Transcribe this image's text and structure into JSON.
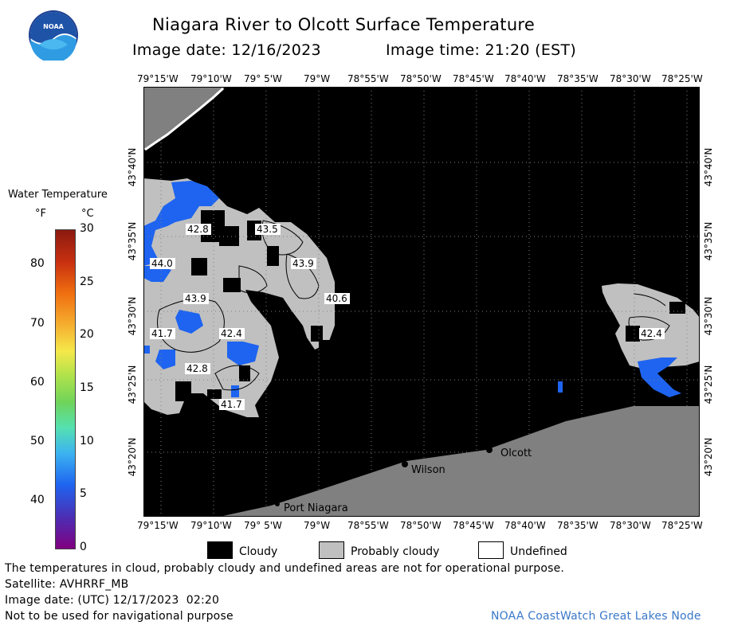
{
  "header": {
    "title": "Niagara River to Olcott Surface Temperature",
    "image_date_label": "Image date: 12/16/2023",
    "image_time_label": "Image time: 21:20 (EST)"
  },
  "logo": {
    "text": "NOAA"
  },
  "axes": {
    "lon_labels": [
      "79°15'W",
      "79°10'W",
      "79° 5'W",
      "79°W",
      "78°55'W",
      "78°50'W",
      "78°45'W",
      "78°40'W",
      "78°35'W",
      "78°30'W",
      "78°25'W"
    ],
    "lat_labels": [
      "43°40'N",
      "43°35'N",
      "43°30'N",
      "43°25'N",
      "43°20'N"
    ]
  },
  "color_scale": {
    "title": "Water Temperature",
    "unit_f": "°F",
    "unit_c": "°C",
    "f_ticks": [
      "80",
      "70",
      "60",
      "50",
      "40"
    ],
    "c_ticks": [
      "30",
      "25",
      "20",
      "15",
      "10",
      "5",
      "0"
    ],
    "f_range": [
      32,
      86
    ],
    "c_range": [
      0,
      30
    ]
  },
  "map": {
    "temperature_labels": [
      "42.8",
      "43.5",
      "43.9",
      "44.0",
      "43.9",
      "40.6",
      "41.7",
      "42.4",
      "42.8",
      "41.7",
      "42.4"
    ],
    "places": {
      "olcott": "Olcott",
      "wilson": "Wilson",
      "port_niagara": "Port Niagara"
    },
    "colors": {
      "cloud": "#000000",
      "probably_cloudy": "#c0c0c0",
      "land": "#808080",
      "cold_water": "#1e64f0"
    }
  },
  "legend": {
    "cloudy": "Cloudy",
    "probably_cloudy": "Probably cloudy",
    "undefined": "Undefined"
  },
  "footer": {
    "disclaimer": "The temperatures in cloud, probably cloudy and undefined areas are not for operational purpose.",
    "satellite": "Satellite: AVHRRF_MB",
    "utc_date": "Image date: (UTC) 12/17/2023  02:20",
    "navigation": "Not to be used for navigational purpose",
    "credit": "NOAA CoastWatch Great Lakes Node"
  }
}
